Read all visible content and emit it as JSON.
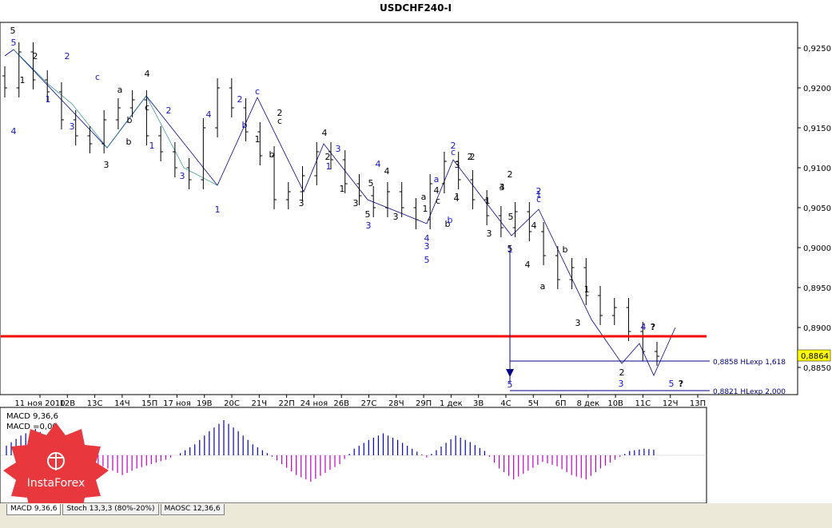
{
  "chart_data": [
    {
      "type": "ohlc",
      "title": "USDCHF240-I",
      "price_axis": {
        "ticks": [
          "0,9250",
          "0,9200",
          "0,9150",
          "0,9100",
          "0,9050",
          "0,9000",
          "0,8950",
          "0,8900",
          "0,8850"
        ],
        "tick_values": [
          0.925,
          0.92,
          0.915,
          0.91,
          0.905,
          0.9,
          0.895,
          0.89,
          0.885
        ],
        "current_price_label": "0,8864",
        "current_price": 0.8864
      },
      "x_ticks": [
        "11 ноя 2010",
        "12В",
        "13С",
        "14Ч",
        "15П",
        "17 ноя",
        "19В",
        "20С",
        "21Ч",
        "22П",
        "24 ноя",
        "26В",
        "27С",
        "28Ч",
        "29П",
        "1 дек",
        "3В",
        "4С",
        "5Ч",
        "6П",
        "8 дек",
        "10В",
        "11С",
        "12Ч",
        "13П"
      ],
      "horizontal_levels": [
        {
          "label": "0,8858 HLexp 1,618",
          "value": 0.8858,
          "color": "#00008b"
        },
        {
          "label": "0,8821 HLexp 2,000",
          "value": 0.8821,
          "color": "#00008b"
        },
        {
          "label": "",
          "value": 0.8889,
          "color": "#ff0000"
        }
      ],
      "wave_labels_black": [
        "5",
        "2",
        "1",
        "b",
        "c",
        "4",
        "3",
        "a",
        "b",
        "2",
        "c",
        "b",
        "1",
        "3",
        "4",
        "2",
        "1",
        "3",
        "5",
        "3",
        "a",
        "b",
        "c",
        "4",
        "1",
        "2",
        "3",
        "4",
        "5",
        "2",
        "4",
        "a",
        "b",
        "1",
        "3",
        "2",
        "4",
        "5",
        "1",
        "4",
        "3",
        "2",
        "1",
        "3",
        "4",
        "5"
      ],
      "wave_labels_blue": [
        "5",
        "4",
        "c",
        "1",
        "2",
        "3",
        "1",
        "4",
        "2",
        "3",
        "c",
        "b",
        "1",
        "2",
        "3",
        "4",
        "1",
        "3",
        "4",
        "5",
        "a",
        "2",
        "1",
        "c",
        "b",
        "3",
        "2",
        "c",
        "1",
        "5",
        "4",
        "3",
        "5"
      ],
      "question_marks": [
        "?",
        "?"
      ],
      "series": {
        "close": [
          0.92,
          0.9245,
          0.921,
          0.9195,
          0.916,
          0.914,
          0.913,
          0.916,
          0.9175,
          0.9185,
          0.914,
          0.912,
          0.91,
          0.9085,
          0.915,
          0.92,
          0.9175,
          0.9145,
          0.9115,
          0.906,
          0.907,
          0.909,
          0.912,
          0.911,
          0.908,
          0.9065,
          0.905,
          0.907,
          0.905,
          0.9035,
          0.908,
          0.9108,
          0.9085,
          0.906,
          0.904,
          0.9025,
          0.9045,
          0.902,
          0.899,
          0.896,
          0.8975,
          0.894,
          0.8915,
          0.8925,
          0.8895,
          0.887,
          0.8864
        ]
      }
    },
    {
      "type": "bar",
      "title": "MACD 9,36,6",
      "subtitle": "MACD =0,00",
      "values": [
        0.22,
        0.45,
        0.6,
        0.4,
        0.25,
        0.1,
        -0.15,
        -0.3,
        -0.45,
        -0.3,
        -0.2,
        -0.1,
        0.05,
        0.25,
        0.55,
        0.8,
        0.55,
        0.25,
        0.05,
        -0.2,
        -0.45,
        -0.6,
        -0.4,
        -0.2,
        0.15,
        0.35,
        0.5,
        0.35,
        0.15,
        -0.05,
        0.2,
        0.45,
        0.3,
        0.1,
        -0.3,
        -0.55,
        -0.35,
        -0.15,
        -0.25,
        -0.45,
        -0.55,
        -0.3,
        -0.1,
        0.1,
        0.15,
        0.12
      ]
    }
  ],
  "indicator_tabs": [
    "MACD 9,36,6",
    "Stoch 13,3,3 (80%-20%)",
    "MAOSC 12,36,6"
  ],
  "logo": {
    "text": "InstaForex",
    "color": "#e8383d"
  },
  "colors": {
    "bull_wave": "#00008b",
    "level_red": "#ff0000",
    "macd_pos": "#0000cd",
    "macd_neg": "#c000c0"
  }
}
